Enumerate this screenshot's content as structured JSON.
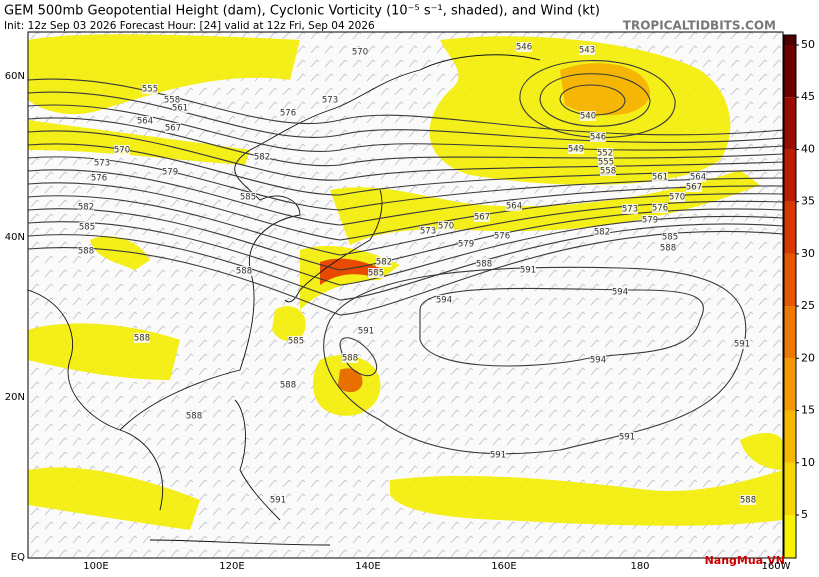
{
  "header": {
    "title": "GEM 500mb Geopotential Height (dam), Cyclonic Vorticity (10⁻⁵ s⁻¹, shaded), and Wind (kt)",
    "subtitle": "Init: 12z Sep 03 2026   Forecast Hour: [24]   valid at 12z Fri, Sep 04 2026",
    "site": "TROPICALTIDBITS.COM",
    "watermark": "NangMua.VN"
  },
  "map": {
    "latitude_labels": [
      "60N",
      "40N",
      "20N",
      "EQ"
    ],
    "longitude_labels": [
      "100E",
      "120E",
      "140E",
      "160E",
      "180",
      "160W"
    ],
    "contour_labels": [
      "570",
      "573",
      "576",
      "582",
      "585",
      "588",
      "588",
      "585",
      "588",
      "588",
      "588",
      "591",
      "591",
      "591",
      "594",
      "594",
      "594",
      "591",
      "591",
      "591",
      "588",
      "588",
      "582",
      "585",
      "579",
      "576",
      "573",
      "570",
      "567",
      "564",
      "546",
      "543",
      "540",
      "546",
      "549",
      "552",
      "555",
      "558",
      "561",
      "564",
      "567",
      "570",
      "576",
      "573",
      "579",
      "582",
      "585",
      "588",
      "555",
      "558",
      "561",
      "564",
      "567",
      "570",
      "573",
      "576",
      "579",
      "582",
      "585",
      "588"
    ]
  },
  "colorbar": {
    "ticks": [
      5,
      10,
      15,
      20,
      25,
      30,
      35,
      40,
      45,
      50
    ],
    "colors": [
      "#f7f300",
      "#f8d600",
      "#f7b800",
      "#f49800",
      "#ef7800",
      "#e65600",
      "#d63800",
      "#bd1c00",
      "#970b00",
      "#6c0000",
      "#4a0000"
    ]
  }
}
